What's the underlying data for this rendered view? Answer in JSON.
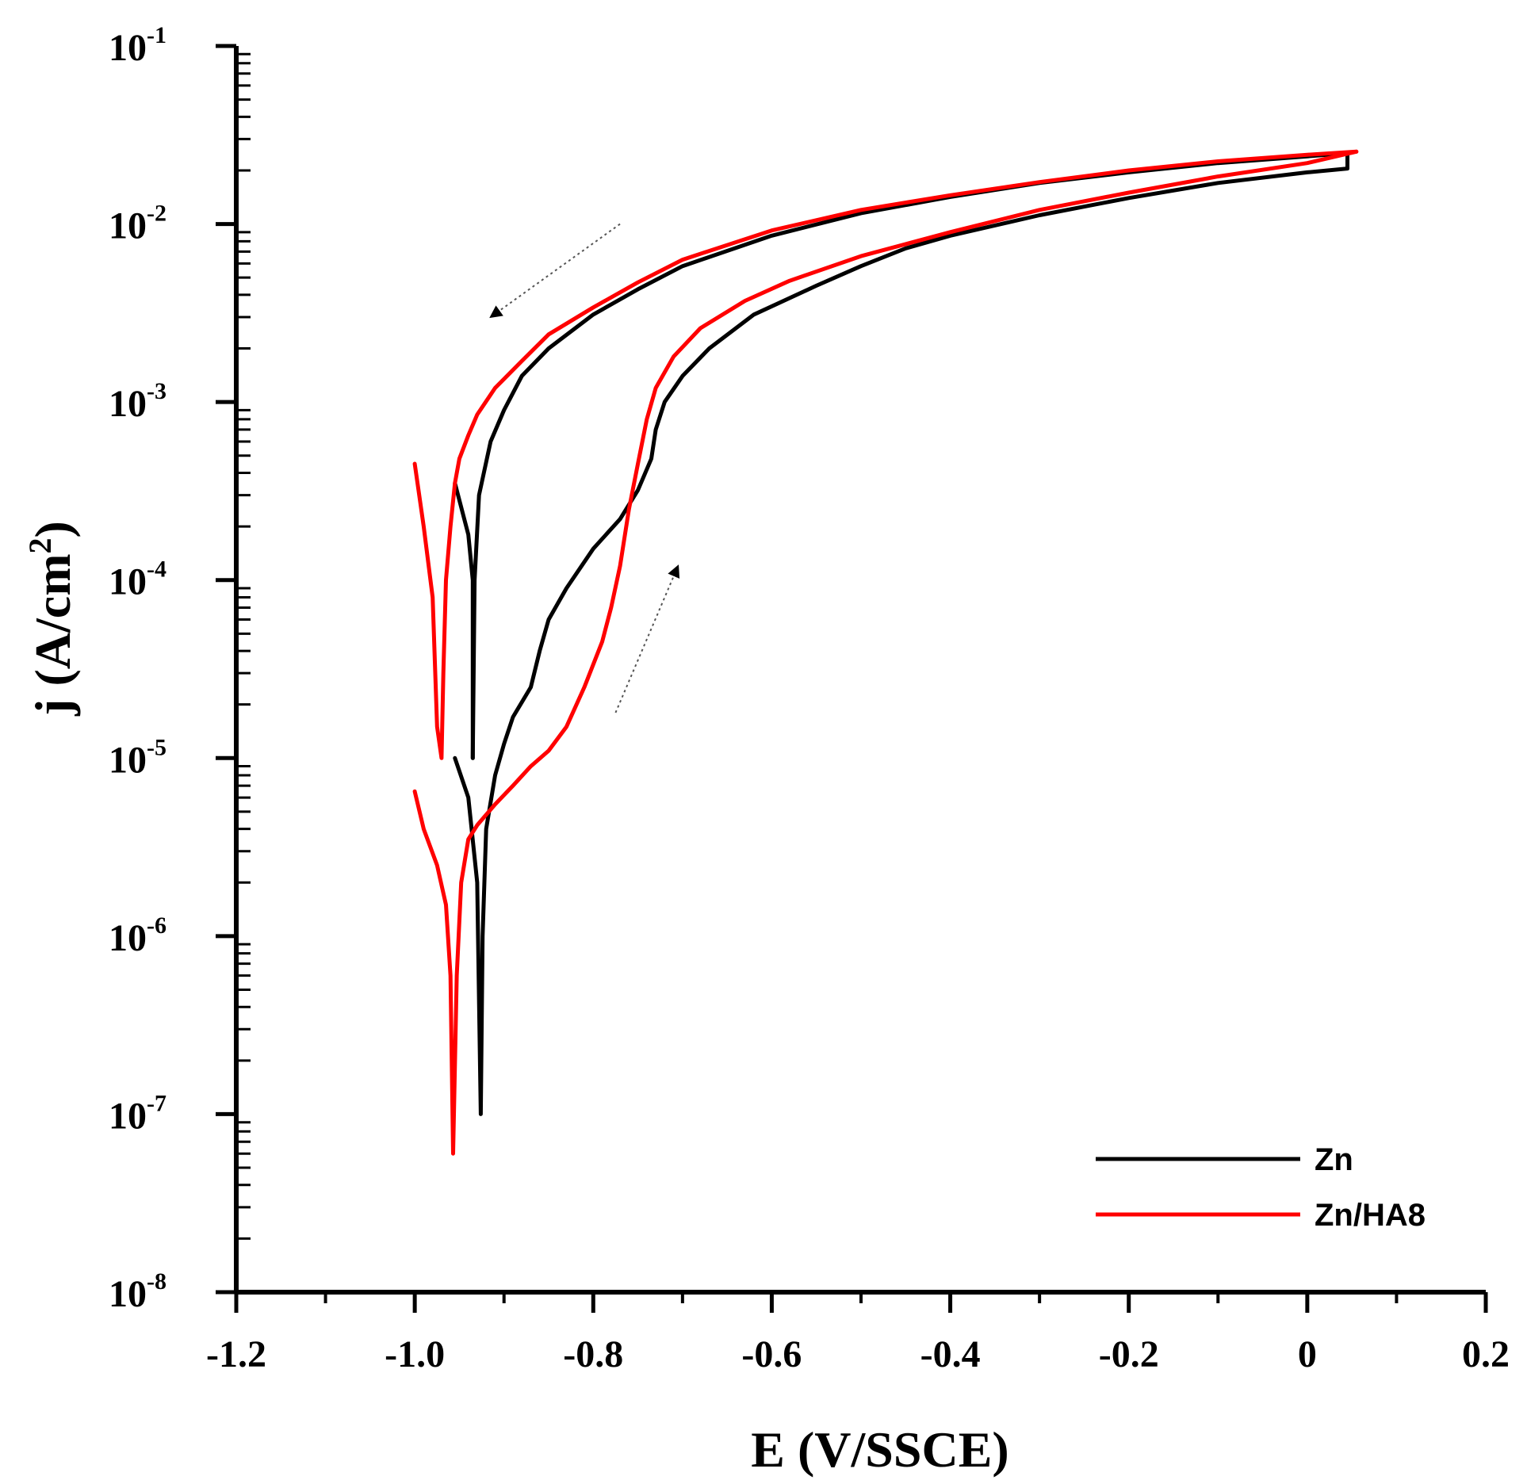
{
  "chart_data": {
    "type": "line",
    "title": "",
    "xlabel": "E (V/SSCE)",
    "ylabel_main": "j (A/cm",
    "ylabel_sup": "2",
    "ylabel_close": ")",
    "yscale": "log",
    "xlim": [
      -1.2,
      0.2
    ],
    "ylim": [
      1e-08,
      0.1
    ],
    "x_ticks": [
      {
        "value": -1.2,
        "label": "-1.2"
      },
      {
        "value": -1.0,
        "label": "-1.0"
      },
      {
        "value": -0.8,
        "label": "-0.8"
      },
      {
        "value": -0.6,
        "label": "-0.6"
      },
      {
        "value": -0.4,
        "label": "-0.4"
      },
      {
        "value": -0.2,
        "label": "-0.2"
      },
      {
        "value": 0.0,
        "label": "0"
      },
      {
        "value": 0.2,
        "label": "0.2"
      }
    ],
    "y_ticks": [
      {
        "exp": -1,
        "base": "10",
        "sup": "-1"
      },
      {
        "exp": -2,
        "base": "10",
        "sup": "-2"
      },
      {
        "exp": -3,
        "base": "10",
        "sup": "-3"
      },
      {
        "exp": -4,
        "base": "10",
        "sup": "-4"
      },
      {
        "exp": -5,
        "base": "10",
        "sup": "-5"
      },
      {
        "exp": -6,
        "base": "10",
        "sup": "-6"
      },
      {
        "exp": -7,
        "base": "10",
        "sup": "-7"
      },
      {
        "exp": -8,
        "base": "10",
        "sup": "-8"
      }
    ],
    "legend_position": "bottom-right",
    "series": [
      {
        "name": "Zn",
        "color": "#000000",
        "segments": [
          [
            [
              -0.935,
              1e-05
            ],
            [
              -0.935,
              0.0001
            ],
            [
              -0.94,
              0.00018
            ],
            [
              -0.955,
              0.00035
            ]
          ],
          [
            [
              -0.935,
              1e-05
            ],
            [
              -0.933,
              0.0001
            ],
            [
              -0.928,
              0.0003
            ],
            [
              -0.915,
              0.0006
            ],
            [
              -0.9,
              0.0009
            ],
            [
              -0.88,
              0.0014
            ],
            [
              -0.85,
              0.002
            ],
            [
              -0.8,
              0.0031
            ],
            [
              -0.75,
              0.0043
            ],
            [
              -0.7,
              0.0058
            ],
            [
              -0.6,
              0.0086
            ],
            [
              -0.5,
              0.0115
            ],
            [
              -0.4,
              0.0142
            ],
            [
              -0.3,
              0.017
            ],
            [
              -0.2,
              0.0195
            ],
            [
              -0.1,
              0.022
            ],
            [
              0.0,
              0.024
            ],
            [
              0.045,
              0.025
            ]
          ],
          [
            [
              -0.955,
              1e-05
            ],
            [
              -0.94,
              6e-06
            ],
            [
              -0.93,
              2e-06
            ],
            [
              -0.926,
              1e-07
            ],
            [
              -0.924,
              1e-06
            ],
            [
              -0.92,
              4e-06
            ],
            [
              -0.91,
              8e-06
            ],
            [
              -0.9,
              1.2e-05
            ],
            [
              -0.89,
              1.7e-05
            ],
            [
              -0.87,
              2.5e-05
            ],
            [
              -0.86,
              4e-05
            ],
            [
              -0.85,
              6e-05
            ],
            [
              -0.83,
              9e-05
            ],
            [
              -0.8,
              0.00015
            ],
            [
              -0.77,
              0.00022
            ],
            [
              -0.75,
              0.00032
            ],
            [
              -0.735,
              0.00048
            ],
            [
              -0.73,
              0.0007
            ],
            [
              -0.72,
              0.001
            ],
            [
              -0.7,
              0.0014
            ],
            [
              -0.67,
              0.002
            ],
            [
              -0.62,
              0.0031
            ],
            [
              -0.55,
              0.0045
            ],
            [
              -0.5,
              0.0058
            ],
            [
              -0.45,
              0.0073
            ],
            [
              -0.4,
              0.0086
            ],
            [
              -0.3,
              0.0112
            ],
            [
              -0.2,
              0.014
            ],
            [
              -0.1,
              0.017
            ],
            [
              0.0,
              0.0195
            ],
            [
              0.045,
              0.0205
            ],
            [
              0.045,
              0.025
            ]
          ]
        ]
      },
      {
        "name": "Zn/HA8",
        "color": "#ff0000",
        "segments": [
          [
            [
              -1.0,
              0.00045
            ],
            [
              -0.99,
              0.0002
            ],
            [
              -0.98,
              8e-05
            ],
            [
              -0.975,
              1.5e-05
            ],
            [
              -0.97,
              1e-05
            ],
            [
              -0.968,
              3e-05
            ],
            [
              -0.965,
              0.0001
            ],
            [
              -0.96,
              0.0002
            ],
            [
              -0.955,
              0.00035
            ],
            [
              -0.95,
              0.00048
            ],
            [
              -0.94,
              0.00065
            ],
            [
              -0.93,
              0.00085
            ],
            [
              -0.91,
              0.0012
            ],
            [
              -0.88,
              0.0017
            ],
            [
              -0.85,
              0.0024
            ],
            [
              -0.8,
              0.0034
            ],
            [
              -0.75,
              0.0047
            ],
            [
              -0.7,
              0.0063
            ],
            [
              -0.6,
              0.0092
            ],
            [
              -0.5,
              0.012
            ],
            [
              -0.4,
              0.0145
            ],
            [
              -0.3,
              0.0172
            ],
            [
              -0.2,
              0.02
            ],
            [
              -0.1,
              0.0225
            ],
            [
              0.0,
              0.0245
            ],
            [
              0.055,
              0.0255
            ]
          ],
          [
            [
              -1.0,
              6.5e-06
            ],
            [
              -0.99,
              4e-06
            ],
            [
              -0.975,
              2.5e-06
            ],
            [
              -0.965,
              1.5e-06
            ],
            [
              -0.96,
              6e-07
            ],
            [
              -0.957,
              6e-08
            ],
            [
              -0.953,
              6e-07
            ],
            [
              -0.948,
              2e-06
            ],
            [
              -0.94,
              3.5e-06
            ],
            [
              -0.93,
              4.2e-06
            ],
            [
              -0.91,
              5.5e-06
            ],
            [
              -0.89,
              7e-06
            ],
            [
              -0.87,
              9e-06
            ],
            [
              -0.85,
              1.1e-05
            ],
            [
              -0.83,
              1.5e-05
            ],
            [
              -0.81,
              2.5e-05
            ],
            [
              -0.79,
              4.5e-05
            ],
            [
              -0.78,
              7e-05
            ],
            [
              -0.77,
              0.00012
            ],
            [
              -0.76,
              0.00025
            ],
            [
              -0.75,
              0.00045
            ],
            [
              -0.74,
              0.0008
            ],
            [
              -0.73,
              0.0012
            ],
            [
              -0.71,
              0.0018
            ],
            [
              -0.68,
              0.0026
            ],
            [
              -0.63,
              0.0037
            ],
            [
              -0.58,
              0.0048
            ],
            [
              -0.5,
              0.0066
            ],
            [
              -0.4,
              0.009
            ],
            [
              -0.3,
              0.012
            ],
            [
              -0.2,
              0.015
            ],
            [
              -0.1,
              0.0185
            ],
            [
              0.0,
              0.022
            ],
            [
              0.055,
              0.0255
            ]
          ]
        ]
      }
    ],
    "annotations": [
      {
        "type": "arrow",
        "from": [
          -0.77,
          0.01
        ],
        "to": [
          -0.915,
          0.003
        ]
      },
      {
        "type": "arrow",
        "from": [
          -0.775,
          1.8e-05
        ],
        "to": [
          -0.705,
          0.00012
        ]
      }
    ]
  }
}
